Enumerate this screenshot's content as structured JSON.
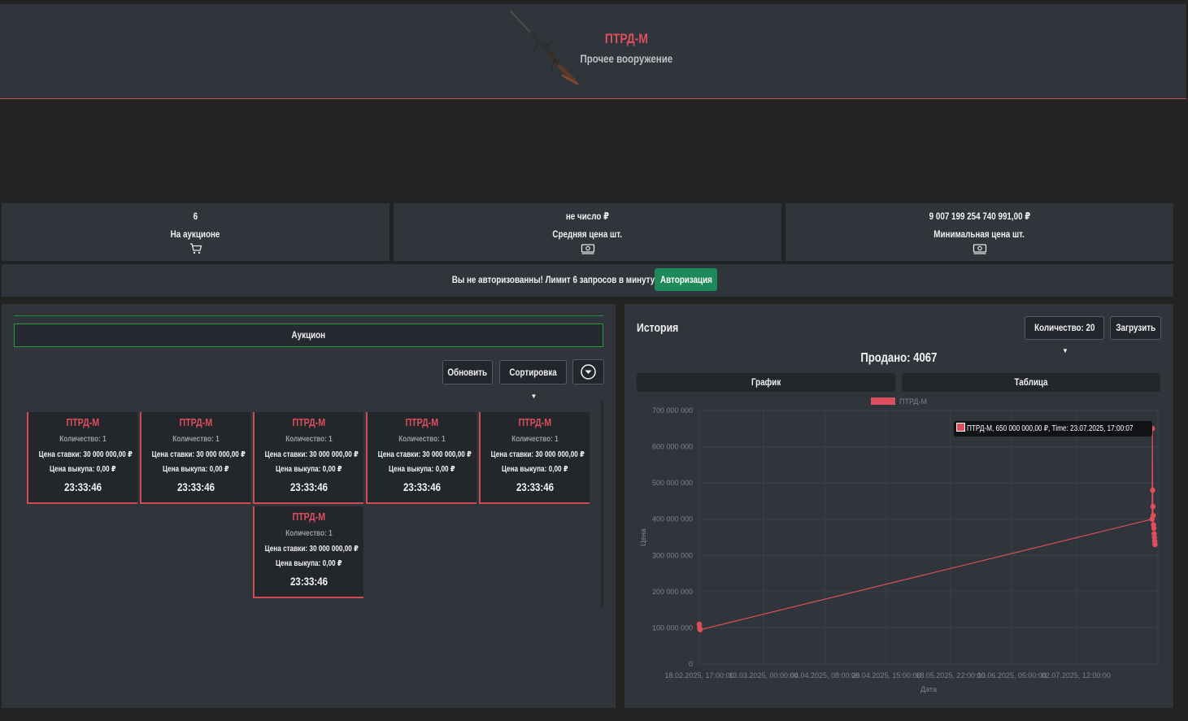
{
  "header": {
    "title": "ПТРД-М",
    "category": "Прочее вооружение"
  },
  "stats": [
    {
      "value": "6",
      "label": "На аукционе",
      "icon": "cart-icon"
    },
    {
      "value": "не число ₽",
      "label": "Средняя цена шт.",
      "icon": "money-icon"
    },
    {
      "value": "9 007 199 254 740 991,00 ₽",
      "label": "Минимальная цена шт.",
      "icon": "money-icon"
    }
  ],
  "auth": {
    "message": "Вы не авторизованны! Лимит 6 запросов в минуту!",
    "button": "Авторизация"
  },
  "auction": {
    "tab_label": "Аукцион",
    "refresh_label": "Обновить",
    "sort_label": "Сортировка",
    "cards": [
      {
        "title": "ПТРД-М",
        "qty": "Количество: 1",
        "bid": "Цена ставки: 30 000 000,00 ₽",
        "buyout": "Цена выкупа: 0,00 ₽",
        "time": "23:33:46"
      },
      {
        "title": "ПТРД-М",
        "qty": "Количество: 1",
        "bid": "Цена ставки: 30 000 000,00 ₽",
        "buyout": "Цена выкупа: 0,00 ₽",
        "time": "23:33:46"
      },
      {
        "title": "ПТРД-М",
        "qty": "Количество: 1",
        "bid": "Цена ставки: 30 000 000,00 ₽",
        "buyout": "Цена выкупа: 0,00 ₽",
        "time": "23:33:46"
      },
      {
        "title": "ПТРД-М",
        "qty": "Количество: 1",
        "bid": "Цена ставки: 30 000 000,00 ₽",
        "buyout": "Цена выкупа: 0,00 ₽",
        "time": "23:33:46"
      },
      {
        "title": "ПТРД-М",
        "qty": "Количество: 1",
        "bid": "Цена ставки: 30 000 000,00 ₽",
        "buyout": "Цена выкупа: 0,00 ₽",
        "time": "23:33:46"
      },
      {
        "title": "ПТРД-М",
        "qty": "Количество: 1",
        "bid": "Цена ставки: 30 000 000,00 ₽",
        "buyout": "Цена выкупа: 0,00 ₽",
        "time": "23:33:46"
      }
    ]
  },
  "history": {
    "title": "История",
    "count_label": "Количество: 20",
    "load_label": "Загрузить",
    "sold_label": "Продано: 4067",
    "tab_graph": "График",
    "tab_table": "Таблица",
    "tooltip": "ПТРД-М, 650 000 000,00 ₽, Time: 23.07.2025, 17:00:07"
  },
  "colors": {
    "accent": "#dc4f5d",
    "green": "#1e8a5a",
    "panel": "#30343b",
    "background": "#232323"
  },
  "chart_data": {
    "type": "line",
    "title": "",
    "legend": [
      "ПТРД-М"
    ],
    "xlabel": "Дата",
    "ylabel": "Цена",
    "ylim": [
      0,
      700000000
    ],
    "y_ticks": [
      0,
      100000000,
      200000000,
      300000000,
      400000000,
      500000000,
      600000000,
      700000000
    ],
    "y_tick_labels": [
      "0",
      "100 000 000",
      "200 000 000",
      "300 000 000",
      "400 000 000",
      "500 000 000",
      "600 000 000",
      "700 000 000"
    ],
    "x_range_days": [
      0,
      157
    ],
    "x_tick_days": [
      0,
      22,
      43,
      64,
      86,
      107,
      129
    ],
    "x_tick_labels": [
      "18.02.2025, 17:00:00",
      "13.03.2025, 00:00:00",
      "04.04.2025, 08:00:00",
      "26.04.2025, 15:00:00",
      "18.05.2025, 22:00:00",
      "10.06.2025, 05:00:00",
      "02.07.2025, 12:00:00"
    ],
    "series": [
      {
        "name": "ПТРД-М",
        "points": [
          {
            "x": 0.0,
            "y": 110000000
          },
          {
            "x": 0.1,
            "y": 100000000
          },
          {
            "x": 0.3,
            "y": 95000000
          },
          {
            "x": 155.0,
            "y": 400000000
          },
          {
            "x": 155.1,
            "y": 650000000
          },
          {
            "x": 155.2,
            "y": 480000000
          },
          {
            "x": 155.3,
            "y": 435000000
          },
          {
            "x": 155.4,
            "y": 410000000
          },
          {
            "x": 155.5,
            "y": 385000000
          },
          {
            "x": 155.6,
            "y": 375000000
          },
          {
            "x": 155.7,
            "y": 360000000
          },
          {
            "x": 155.8,
            "y": 350000000
          },
          {
            "x": 155.9,
            "y": 340000000
          },
          {
            "x": 156.0,
            "y": 330000000
          }
        ]
      }
    ]
  }
}
